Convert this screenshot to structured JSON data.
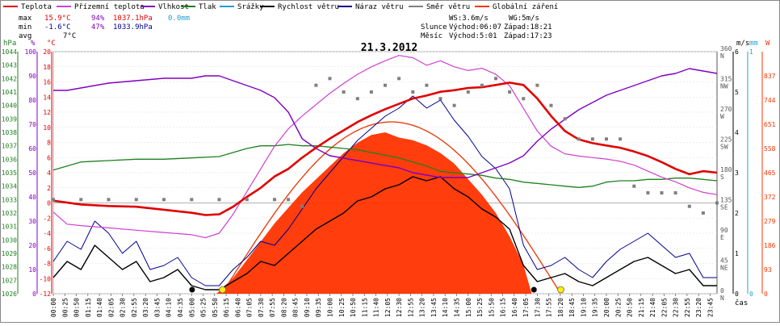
{
  "legend": [
    {
      "label": "Teplota",
      "color": "#e00000"
    },
    {
      "label": "Přízemní teplota",
      "color": "#d040d0"
    },
    {
      "label": "Vlhkost",
      "color": "#8000c0"
    },
    {
      "label": "Tlak",
      "color": "#208020"
    },
    {
      "label": "Srážky",
      "color": "#20a0d0"
    },
    {
      "label": "Rychlost větru",
      "color": "#000000"
    },
    {
      "label": "Náraz větru",
      "color": "#000090"
    },
    {
      "label": "Směr větru",
      "color": "#808080"
    },
    {
      "label": "Globální záření",
      "color": "#ff3300"
    }
  ],
  "stats": {
    "max": {
      "label": "max",
      "t": "15.9°C",
      "h": "94%",
      "p": "1037.1hPa",
      "r": "0.0mm"
    },
    "min": {
      "label": "min",
      "t": "-1.6°C",
      "h": "47%",
      "p": "1033.9hPa"
    },
    "avg": {
      "label": "avg",
      "t": "7°C"
    }
  },
  "wind_info": {
    "ws": "WS:3.6m/s",
    "wg": "WG:5m/s"
  },
  "sun": {
    "label": "Slunce",
    "rise": "Východ:06:07",
    "set": "Západ:18:21"
  },
  "moon": {
    "label": "Měsíc",
    "rise": "Východ:5:01",
    "set": "Západ:17:23"
  },
  "chart_data": {
    "type": "line",
    "title": "21.3.2012",
    "xlabel": "čas",
    "x_ticks": [
      "00:00",
      "00:25",
      "00:50",
      "01:15",
      "01:40",
      "02:05",
      "02:30",
      "02:55",
      "03:20",
      "03:45",
      "04:10",
      "04:35",
      "05:00",
      "05:25",
      "05:50",
      "06:15",
      "06:40",
      "07:05",
      "07:30",
      "07:55",
      "08:20",
      "08:45",
      "09:10",
      "09:35",
      "10:00",
      "10:25",
      "10:50",
      "11:15",
      "11:40",
      "12:05",
      "12:30",
      "12:55",
      "13:20",
      "13:45",
      "14:10",
      "14:35",
      "15:00",
      "15:25",
      "15:50",
      "16:15",
      "16:40",
      "17:05",
      "17:30",
      "17:55",
      "18:20",
      "18:45",
      "19:10",
      "19:35",
      "20:00",
      "20:25",
      "20:50",
      "21:15",
      "21:40",
      "22:05",
      "22:30",
      "22:55",
      "23:20",
      "23:45"
    ],
    "axes": {
      "pressure": {
        "unit": "hPa",
        "ticks": [
          "1026",
          "1027",
          "1028",
          "1029",
          "1030",
          "1031",
          "1032",
          "1033",
          "1034",
          "1035",
          "1036",
          "1037",
          "1038",
          "1039",
          "1040",
          "1041",
          "1042",
          "1043",
          "1044"
        ],
        "range": [
          1026,
          1044
        ]
      },
      "humidity": {
        "unit": "%",
        "ticks": [
          "0",
          "10",
          "20",
          "30",
          "40",
          "50",
          "60",
          "70",
          "80",
          "90",
          "100"
        ],
        "range": [
          0,
          100
        ]
      },
      "temperature": {
        "unit": "°C",
        "ticks": [
          "-12",
          "-10",
          "-8",
          "-6",
          "-4",
          "-2",
          "0",
          "2",
          "4",
          "6",
          "8",
          "10",
          "12",
          "14",
          "16",
          "18",
          "20"
        ],
        "range": [
          -12,
          20
        ]
      },
      "direction": {
        "unit": "°",
        "ticks": [
          {
            "v": "0",
            "d": "N"
          },
          {
            "v": "45",
            "d": "NE"
          },
          {
            "v": "90",
            "d": "E"
          },
          {
            "v": "135",
            "d": "SE"
          },
          {
            "v": "180",
            "d": "S"
          },
          {
            "v": "225",
            "d": "SW"
          },
          {
            "v": "270",
            "d": "W"
          },
          {
            "v": "315",
            "d": "NW"
          },
          {
            "v": "360",
            "d": "N"
          }
        ],
        "range": [
          0,
          360
        ]
      },
      "wind": {
        "unit": "m/s",
        "ticks": [
          "0",
          "1",
          "2",
          "3",
          "4",
          "5",
          "6"
        ],
        "range": [
          0,
          6
        ]
      },
      "rain": {
        "unit": "mm",
        "ticks": [
          "0",
          "1"
        ],
        "range": [
          0,
          1
        ]
      },
      "radiation": {
        "unit": "W",
        "ticks": [
          "0",
          "93",
          "186",
          "279",
          "372",
          "465",
          "558",
          "651",
          "744",
          "837"
        ],
        "range": [
          0,
          930
        ]
      }
    },
    "series": [
      {
        "name": "Teplota",
        "unit": "°C",
        "color": "#e00000",
        "hours": [
          0,
          1,
          2,
          3,
          4,
          5,
          5.5,
          6,
          6.5,
          7,
          7.5,
          8,
          8.5,
          9,
          9.5,
          10,
          10.5,
          11,
          11.5,
          12,
          12.5,
          13,
          13.5,
          14,
          14.5,
          15,
          15.5,
          16,
          16.5,
          17,
          17.5,
          18,
          18.5,
          19,
          19.5,
          20,
          20.5,
          21,
          21.5,
          22,
          22.5,
          23,
          23.5,
          24
        ],
        "values": [
          0.3,
          -0.2,
          -0.4,
          -0.5,
          -0.9,
          -1.3,
          -1.6,
          -1.5,
          -0.5,
          0.8,
          2.0,
          3.5,
          4.5,
          6.0,
          7.3,
          8.5,
          9.6,
          10.7,
          11.6,
          12.4,
          13.1,
          13.8,
          14.2,
          14.7,
          14.9,
          15.2,
          15.3,
          15.6,
          15.9,
          15.6,
          13.8,
          11.5,
          9.5,
          8.4,
          7.9,
          7.6,
          7.3,
          6.8,
          6.2,
          5.4,
          4.5,
          3.8,
          4.2,
          4.0
        ]
      },
      {
        "name": "Přízemní teplota",
        "unit": "°C",
        "color": "#d040d0",
        "hours": [
          0,
          0.5,
          1,
          2,
          3,
          4,
          5,
          5.5,
          6,
          6.5,
          7,
          7.5,
          8,
          8.5,
          9,
          9.5,
          10,
          10.5,
          11,
          11.5,
          12,
          12.5,
          13,
          13.5,
          14,
          14.5,
          15,
          15.5,
          16,
          16.5,
          17,
          17.5,
          18,
          18.5,
          19,
          19.5,
          20,
          20.5,
          21,
          21.5,
          22,
          22.5,
          23,
          23.5,
          24
        ],
        "values": [
          -1.2,
          -2.8,
          -3.0,
          -3.3,
          -3.6,
          -3.9,
          -4.2,
          -4.6,
          -4.0,
          -1.5,
          1.5,
          4.5,
          7.5,
          9.8,
          11.5,
          13.0,
          14.5,
          15.8,
          17.0,
          18.0,
          18.8,
          19.5,
          19.2,
          18.2,
          18.8,
          18.0,
          17.5,
          17.8,
          17.0,
          15.5,
          12.5,
          9.5,
          7.5,
          6.5,
          6.2,
          6.0,
          5.8,
          5.5,
          5.0,
          4.2,
          3.4,
          2.8,
          2.0,
          1.4,
          1.1
        ]
      },
      {
        "name": "Vlhkost",
        "unit": "%",
        "color": "#8000c0",
        "hours": [
          0,
          0.5,
          1,
          2,
          3,
          4,
          5,
          5.5,
          6,
          6.5,
          7,
          7.5,
          8,
          8.5,
          9,
          9.5,
          10,
          10.5,
          11,
          11.5,
          12,
          12.5,
          13,
          13.5,
          14,
          14.5,
          15,
          15.5,
          16,
          16.5,
          17,
          17.5,
          18,
          18.5,
          19,
          19.5,
          20,
          20.5,
          21,
          21.5,
          22,
          22.5,
          23,
          23.5,
          24
        ],
        "values": [
          84,
          84,
          85,
          87,
          88,
          89,
          89,
          90,
          90,
          88,
          86,
          84,
          81,
          75,
          64,
          60,
          57,
          56,
          55,
          54,
          53,
          52,
          50,
          49,
          48,
          48,
          48,
          50,
          52,
          54,
          57,
          63,
          68,
          72,
          76,
          79,
          82,
          84,
          86,
          88,
          90,
          91,
          93,
          92,
          91
        ]
      },
      {
        "name": "Tlak",
        "unit": "hPa",
        "color": "#208020",
        "hours": [
          0,
          0.5,
          1,
          2,
          3,
          4,
          5,
          6,
          6.5,
          7,
          7.5,
          8,
          8.5,
          9,
          9.5,
          10,
          10.5,
          11,
          11.5,
          12,
          12.5,
          13,
          13.5,
          14,
          14.5,
          15,
          15.5,
          16,
          16.5,
          17,
          17.5,
          18,
          18.5,
          19,
          19.5,
          20,
          20.5,
          21,
          21.5,
          22,
          22.5,
          23,
          23.5,
          24
        ],
        "values": [
          1035.2,
          1035.5,
          1035.8,
          1035.9,
          1036.0,
          1036.0,
          1036.1,
          1036.2,
          1036.5,
          1036.8,
          1037.0,
          1037.0,
          1037.1,
          1037.0,
          1037.0,
          1036.9,
          1036.8,
          1036.7,
          1036.5,
          1036.3,
          1036.1,
          1035.8,
          1035.5,
          1035.1,
          1035.0,
          1034.9,
          1034.8,
          1034.6,
          1034.5,
          1034.3,
          1034.2,
          1034.1,
          1034.0,
          1033.9,
          1034.0,
          1034.3,
          1034.4,
          1034.4,
          1034.5,
          1034.5,
          1034.6,
          1034.6,
          1034.5,
          1034.4
        ]
      },
      {
        "name": "Globální záření",
        "unit": "W",
        "color": "#ff3300",
        "hours": [
          5.9,
          6.5,
          7,
          7.5,
          8,
          8.5,
          9,
          9.5,
          10,
          10.5,
          11,
          11.5,
          12,
          12.5,
          13,
          13.5,
          14,
          14.5,
          15,
          15.5,
          16,
          16.5,
          17,
          17.3
        ],
        "values": [
          0,
          60,
          130,
          200,
          270,
          330,
          390,
          440,
          490,
          540,
          580,
          610,
          620,
          600,
          590,
          570,
          540,
          500,
          440,
          380,
          310,
          220,
          110,
          0
        ]
      },
      {
        "name": "Rychlost větru",
        "unit": "m/s",
        "color": "#000000",
        "hours": [
          0,
          0.5,
          1,
          1.5,
          2,
          2.5,
          3,
          3.5,
          4,
          4.5,
          5,
          5.5,
          6,
          6.5,
          7,
          7.5,
          8,
          8.5,
          9,
          9.5,
          10,
          10.5,
          11,
          11.5,
          12,
          12.5,
          13,
          13.5,
          14,
          14.5,
          15,
          15.5,
          16,
          16.5,
          17,
          17.5,
          18,
          18.5,
          19,
          19.5,
          20,
          20.5,
          21,
          21.5,
          22,
          22.5,
          23,
          23.5,
          24
        ],
        "values": [
          0.4,
          0.8,
          0.6,
          1.2,
          0.9,
          0.6,
          0.8,
          0.3,
          0.4,
          0.6,
          0.2,
          0.1,
          0.1,
          0.3,
          0.5,
          0.8,
          0.7,
          1.0,
          1.3,
          1.6,
          1.8,
          2.0,
          2.3,
          2.4,
          2.6,
          2.7,
          2.9,
          2.8,
          2.9,
          2.6,
          2.4,
          2.1,
          1.9,
          1.6,
          0.7,
          0.3,
          0.4,
          0.5,
          0.3,
          0.2,
          0.4,
          0.6,
          0.8,
          0.9,
          0.7,
          0.5,
          0.6,
          0.2,
          0.2
        ]
      },
      {
        "name": "Náraz větru",
        "unit": "m/s",
        "color": "#000090",
        "hours": [
          0,
          0.5,
          1,
          1.5,
          2,
          2.5,
          3,
          3.5,
          4,
          4.5,
          5,
          5.5,
          6,
          6.5,
          7,
          7.5,
          8,
          8.5,
          9,
          9.5,
          10,
          10.5,
          11,
          11.5,
          12,
          12.5,
          13,
          13.5,
          14,
          14.5,
          15,
          15.5,
          16,
          16.5,
          17,
          17.5,
          18,
          18.5,
          19,
          19.5,
          20,
          20.5,
          21,
          21.5,
          22,
          22.5,
          23,
          23.5,
          24
        ],
        "values": [
          0.8,
          1.3,
          1.1,
          1.8,
          1.5,
          1.0,
          1.3,
          0.6,
          0.7,
          0.9,
          0.4,
          0.2,
          0.2,
          0.6,
          0.9,
          1.3,
          1.2,
          1.6,
          2.1,
          2.6,
          3.0,
          3.4,
          3.8,
          4.1,
          4.4,
          4.6,
          4.9,
          4.6,
          4.8,
          4.3,
          3.9,
          3.4,
          3.1,
          2.6,
          1.2,
          0.6,
          0.7,
          0.9,
          0.6,
          0.4,
          0.8,
          1.1,
          1.3,
          1.5,
          1.2,
          0.9,
          1.0,
          0.4,
          0.4
        ]
      },
      {
        "name": "Směr větru",
        "unit": "°",
        "color": "#808080",
        "hours": [
          0,
          1,
          2,
          3,
          4,
          5,
          6,
          7,
          8,
          8.5,
          9,
          9.5,
          10,
          10.5,
          11,
          11.5,
          12,
          12.5,
          13,
          13.5,
          14,
          14.5,
          15,
          15.5,
          16,
          16.5,
          17,
          17.5,
          18,
          18.5,
          19,
          19.5,
          20,
          20.5,
          21,
          21.5,
          22,
          22.5,
          23,
          23.5,
          24
        ],
        "values": [
          140,
          140,
          140,
          140,
          140,
          140,
          140,
          140,
          140,
          140,
          130,
          310,
          320,
          300,
          290,
          300,
          310,
          320,
          300,
          310,
          290,
          280,
          300,
          310,
          320,
          300,
          290,
          310,
          280,
          260,
          230,
          230,
          230,
          230,
          160,
          150,
          150,
          150,
          130,
          120,
          135
        ]
      }
    ]
  }
}
